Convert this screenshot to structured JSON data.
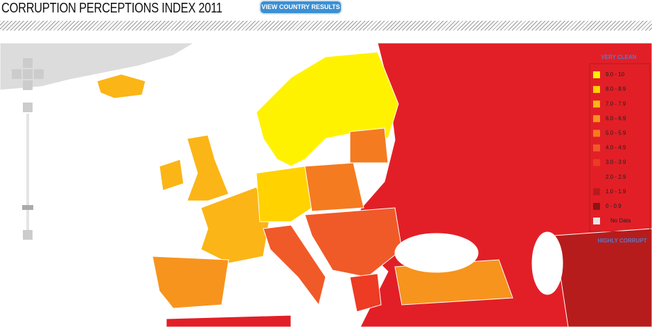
{
  "header": {
    "title": "CORRUPTION PERCEPTIONS INDEX 2011",
    "button": "VIEW COUNTRY RESULTS"
  },
  "legend": {
    "top": "VERY CLEAN",
    "bottom": "HIGHLY CORRUPT",
    "items": [
      {
        "label": "9.0 - 10",
        "color": "#fff200"
      },
      {
        "label": "8.0 - 8.9",
        "color": "#ffd200"
      },
      {
        "label": "7.0 - 7.9",
        "color": "#fbb516"
      },
      {
        "label": "6.0 - 6.9",
        "color": "#f7941d"
      },
      {
        "label": "5.0 - 5.9",
        "color": "#f47b20"
      },
      {
        "label": "4.0 - 4.9",
        "color": "#f05a28"
      },
      {
        "label": "3.0 - 3.9",
        "color": "#ed3b24"
      },
      {
        "label": "2.0 - 2.9",
        "color": "#e21f26"
      },
      {
        "label": "1.0 - 1.9",
        "color": "#b71c1c"
      },
      {
        "label": "0 - 0.9",
        "color": "#8b1414"
      },
      {
        "label": "No Data",
        "color": "#e6e6e6"
      }
    ]
  }
}
